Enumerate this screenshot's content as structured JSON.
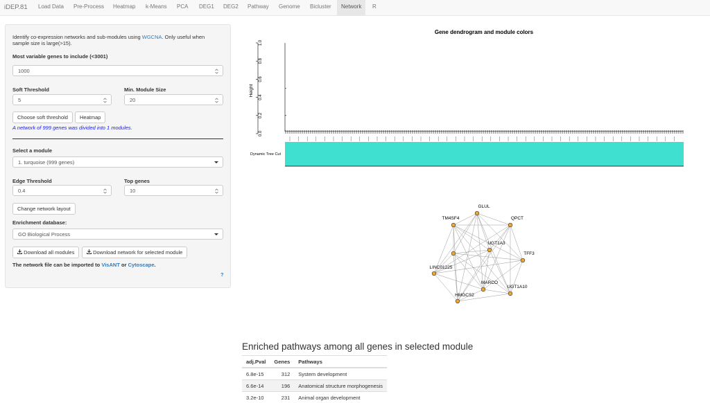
{
  "nav": {
    "brand": "iDEP.81",
    "tabs": [
      "Load Data",
      "Pre-Process",
      "Heatmap",
      "k-Means",
      "PCA",
      "DEG1",
      "DEG2",
      "Pathway",
      "Genome",
      "Bicluster",
      "Network",
      "R"
    ],
    "active": 10
  },
  "panel": {
    "intro_before": "Identify co-expression networks and sub-modules using ",
    "intro_link": "WGCNA",
    "intro_after": ". Only useful when sample size is large(>15).",
    "genes_label": "Most variable genes to include (<3001)",
    "genes_value": 1000,
    "soft_label": "Soft Threshold",
    "soft_value": 5,
    "module_size_label": "Min. Module Size",
    "module_size_value": 20,
    "btn_soft": "Choose soft threshold",
    "btn_heatmap": "Heatmap",
    "status": "A network of 999 genes was divided into 1 modules.",
    "module_label": "Select a module",
    "module_value": "1. turquoise (999 genes)",
    "edge_label": "Edge Threshold",
    "edge_value": 0.4,
    "top_label": "Top genes",
    "top_value": 10,
    "btn_layout": "Change network layout",
    "db_label": "Enrichment database:",
    "db_value": "GO Biological Process",
    "btn_download_all": "Download all modules",
    "btn_download_net": "Download network for selected module",
    "note_before": "The network file can be imported to ",
    "note_link1": "VisANT",
    "note_mid": " or ",
    "note_link2": "Cytoscape",
    "note_after": ".",
    "help": "?"
  },
  "dendrogram": {
    "title": "Gene dendrogram and module colors",
    "y_label": "Height",
    "ylim": [
      0,
      1
    ],
    "yticks": [
      {
        "value": 0,
        "label": "0.0"
      },
      {
        "value": 0.2,
        "label": "0.2"
      },
      {
        "value": 0.4,
        "label": "0.4"
      },
      {
        "value": 0.6,
        "label": "0.6"
      },
      {
        "value": 0.8,
        "label": "0.8"
      },
      {
        "value": 1,
        "label": "1.0"
      }
    ],
    "module_row_label": "Dynamic Tree Cut",
    "module_color": "#40e0d0"
  },
  "network": {
    "node_color": "#f0a830",
    "nodes": [
      "GLUL",
      "QPCT",
      "TM4SF4",
      "UGT1A3",
      "TFF3",
      null,
      "LINC01225",
      "MARCO",
      "UGT1A10",
      "HMGCS2"
    ]
  },
  "enrichment": {
    "title": "Enriched pathways among all genes in selected module",
    "columns": [
      "adj.Pval",
      "Genes",
      "Pathways"
    ],
    "rows": [
      [
        6.8e-15,
        312,
        "System development"
      ],
      [
        6.6e-14,
        196,
        "Anatomical structure morphogenesis"
      ],
      [
        3.2e-10,
        231,
        "Animal organ development"
      ]
    ]
  }
}
